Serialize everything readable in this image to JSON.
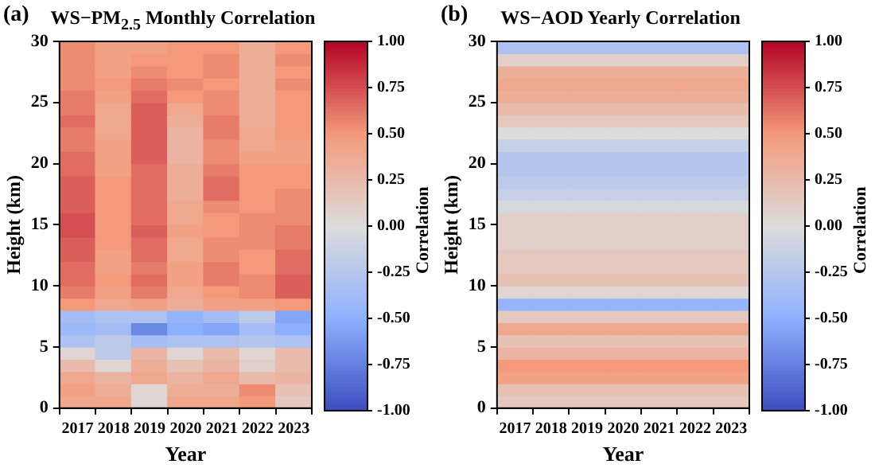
{
  "chart_data": [
    {
      "type": "heatmap",
      "title": "WS−PM$_{2.5}$ Monthly Correlation",
      "annotations": [
        "(a)"
      ],
      "xlabel": "Year",
      "ylabel": "Height (km)",
      "clabel": "Correlation",
      "categories": [
        "2017",
        "2018",
        "2019",
        "2020",
        "2021",
        "2022",
        "2023"
      ],
      "ylim": [
        0,
        30
      ],
      "yticks": [
        0,
        5,
        10,
        15,
        20,
        25,
        30
      ],
      "clim": [
        -1,
        1
      ],
      "cticks": [
        {
          "value": -1,
          "label": "-1.00"
        },
        {
          "value": -0.75,
          "label": "-0.75"
        },
        {
          "value": -0.5,
          "label": "-0.50"
        },
        {
          "value": -0.25,
          "label": "-0.25"
        },
        {
          "value": 0,
          "label": "0.00"
        },
        {
          "value": 0.25,
          "label": "0.25"
        },
        {
          "value": 0.5,
          "label": "0.50"
        },
        {
          "value": 0.75,
          "label": "0.75"
        },
        {
          "value": 1,
          "label": "1.00"
        }
      ],
      "cells": [
        [
          0.55,
          0.45,
          0.45,
          0.5,
          0.5,
          0.35,
          0.5
        ],
        [
          0.55,
          0.45,
          0.5,
          0.5,
          0.55,
          0.35,
          0.55
        ],
        [
          0.55,
          0.45,
          0.55,
          0.5,
          0.55,
          0.35,
          0.5
        ],
        [
          0.55,
          0.5,
          0.6,
          0.55,
          0.5,
          0.35,
          0.55
        ],
        [
          0.6,
          0.45,
          0.65,
          0.5,
          0.55,
          0.35,
          0.5
        ],
        [
          0.6,
          0.4,
          0.7,
          0.4,
          0.55,
          0.35,
          0.5
        ],
        [
          0.65,
          0.4,
          0.7,
          0.35,
          0.6,
          0.35,
          0.5
        ],
        [
          0.6,
          0.4,
          0.7,
          0.3,
          0.6,
          0.4,
          0.5
        ],
        [
          0.6,
          0.45,
          0.7,
          0.3,
          0.55,
          0.4,
          0.45
        ],
        [
          0.65,
          0.45,
          0.7,
          0.3,
          0.55,
          0.45,
          0.45
        ],
        [
          0.65,
          0.45,
          0.65,
          0.35,
          0.6,
          0.5,
          0.5
        ],
        [
          0.7,
          0.5,
          0.65,
          0.35,
          0.65,
          0.5,
          0.5
        ],
        [
          0.7,
          0.5,
          0.65,
          0.35,
          0.65,
          0.5,
          0.55
        ],
        [
          0.7,
          0.5,
          0.65,
          0.4,
          0.55,
          0.5,
          0.55
        ],
        [
          0.75,
          0.5,
          0.65,
          0.4,
          0.5,
          0.55,
          0.55
        ],
        [
          0.75,
          0.5,
          0.7,
          0.45,
          0.5,
          0.55,
          0.6
        ],
        [
          0.7,
          0.5,
          0.65,
          0.4,
          0.55,
          0.55,
          0.6
        ],
        [
          0.7,
          0.45,
          0.65,
          0.4,
          0.55,
          0.5,
          0.65
        ],
        [
          0.65,
          0.45,
          0.6,
          0.45,
          0.6,
          0.5,
          0.65
        ],
        [
          0.65,
          0.5,
          0.65,
          0.45,
          0.6,
          0.55,
          0.7
        ],
        [
          0.6,
          0.45,
          0.6,
          0.4,
          0.5,
          0.55,
          0.7
        ],
        [
          0.5,
          0.4,
          0.45,
          0.35,
          0.45,
          0.45,
          0.5
        ],
        [
          -0.35,
          -0.3,
          -0.3,
          -0.45,
          -0.35,
          -0.2,
          -0.55
        ],
        [
          -0.4,
          -0.35,
          -0.7,
          -0.5,
          -0.55,
          -0.35,
          -0.5
        ],
        [
          -0.3,
          -0.2,
          -0.35,
          -0.3,
          -0.3,
          -0.25,
          -0.3
        ],
        [
          0.05,
          -0.2,
          0.3,
          0.05,
          0.25,
          0.05,
          0.25
        ],
        [
          0.25,
          0.05,
          0.35,
          0.2,
          0.3,
          0.1,
          0.25
        ],
        [
          0.4,
          0.3,
          0.4,
          0.3,
          0.4,
          0.25,
          0.3
        ],
        [
          0.45,
          0.35,
          0.05,
          0.35,
          0.35,
          0.55,
          0.2
        ],
        [
          0.4,
          0.4,
          0.05,
          0.4,
          0.4,
          0.5,
          0.15
        ]
      ]
    },
    {
      "type": "heatmap",
      "title": "WS−AOD Yearly Correlation",
      "annotations": [
        "(b)"
      ],
      "xlabel": "Year",
      "ylabel": "Height (km)",
      "clabel": "Correlation",
      "categories": [
        "2017",
        "2018",
        "2019",
        "2020",
        "2021",
        "2022",
        "2023"
      ],
      "ylim": [
        0,
        30
      ],
      "yticks": [
        0,
        5,
        10,
        15,
        20,
        25,
        30
      ],
      "clim": [
        -1,
        1
      ],
      "cticks": [
        {
          "value": -1,
          "label": "-1.00"
        },
        {
          "value": -0.75,
          "label": "-0.75"
        },
        {
          "value": -0.5,
          "label": "-0.50"
        },
        {
          "value": -0.25,
          "label": "-0.25"
        },
        {
          "value": 0,
          "label": "0.00"
        },
        {
          "value": 0.25,
          "label": "0.25"
        },
        {
          "value": 0.5,
          "label": "0.50"
        },
        {
          "value": 0.75,
          "label": "0.75"
        },
        {
          "value": 1,
          "label": "1.00"
        }
      ],
      "cells": [
        [
          -0.3,
          -0.3,
          -0.3,
          -0.3,
          -0.3,
          -0.3,
          -0.3
        ],
        [
          0.1,
          0.1,
          0.1,
          0.1,
          0.1,
          0.1,
          0.1
        ],
        [
          0.35,
          0.35,
          0.35,
          0.35,
          0.35,
          0.35,
          0.35
        ],
        [
          0.4,
          0.4,
          0.4,
          0.4,
          0.4,
          0.4,
          0.4
        ],
        [
          0.35,
          0.35,
          0.35,
          0.35,
          0.35,
          0.35,
          0.35
        ],
        [
          0.25,
          0.25,
          0.25,
          0.25,
          0.25,
          0.25,
          0.25
        ],
        [
          0.15,
          0.15,
          0.15,
          0.15,
          0.15,
          0.15,
          0.15
        ],
        [
          0,
          0,
          0,
          0,
          0,
          0,
          0
        ],
        [
          -0.15,
          -0.15,
          -0.15,
          -0.15,
          -0.15,
          -0.15,
          -0.15
        ],
        [
          -0.25,
          -0.25,
          -0.25,
          -0.25,
          -0.25,
          -0.25,
          -0.25
        ],
        [
          -0.25,
          -0.25,
          -0.25,
          -0.25,
          -0.25,
          -0.25,
          -0.25
        ],
        [
          -0.2,
          -0.2,
          -0.2,
          -0.2,
          -0.2,
          -0.2,
          -0.2
        ],
        [
          -0.15,
          -0.15,
          -0.15,
          -0.15,
          -0.15,
          -0.15,
          -0.15
        ],
        [
          -0.05,
          -0.05,
          -0.05,
          -0.05,
          -0.05,
          -0.05,
          -0.05
        ],
        [
          0.1,
          0.1,
          0.1,
          0.1,
          0.1,
          0.1,
          0.1
        ],
        [
          0.1,
          0.1,
          0.1,
          0.1,
          0.1,
          0.1,
          0.1
        ],
        [
          0.1,
          0.1,
          0.1,
          0.1,
          0.1,
          0.1,
          0.1
        ],
        [
          0.15,
          0.15,
          0.15,
          0.15,
          0.15,
          0.15,
          0.15
        ],
        [
          0.15,
          0.15,
          0.15,
          0.15,
          0.15,
          0.15,
          0.15
        ],
        [
          0.2,
          0.2,
          0.2,
          0.2,
          0.2,
          0.2,
          0.2
        ],
        [
          0.05,
          0.05,
          0.05,
          0.05,
          0.05,
          0.05,
          0.05
        ],
        [
          -0.45,
          -0.45,
          -0.45,
          -0.45,
          -0.45,
          -0.45,
          -0.45
        ],
        [
          0.15,
          0.15,
          0.15,
          0.15,
          0.15,
          0.15,
          0.15
        ],
        [
          0.4,
          0.4,
          0.4,
          0.4,
          0.4,
          0.4,
          0.4
        ],
        [
          0.2,
          0.2,
          0.2,
          0.2,
          0.2,
          0.2,
          0.2
        ],
        [
          0.3,
          0.3,
          0.3,
          0.3,
          0.3,
          0.3,
          0.3
        ],
        [
          0.5,
          0.5,
          0.5,
          0.5,
          0.5,
          0.5,
          0.5
        ],
        [
          0.45,
          0.45,
          0.45,
          0.45,
          0.45,
          0.45,
          0.45
        ],
        [
          0.2,
          0.2,
          0.2,
          0.2,
          0.2,
          0.2,
          0.2
        ],
        [
          0.15,
          0.15,
          0.15,
          0.15,
          0.15,
          0.15,
          0.15
        ]
      ]
    }
  ]
}
